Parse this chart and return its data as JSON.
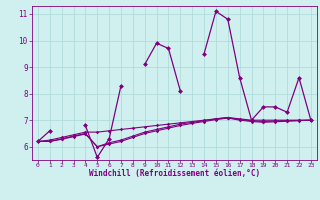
{
  "xlabel": "Windchill (Refroidissement éolien,°C)",
  "x_values": [
    0,
    1,
    2,
    3,
    4,
    5,
    6,
    7,
    8,
    9,
    10,
    11,
    12,
    13,
    14,
    15,
    16,
    17,
    18,
    19,
    20,
    21,
    22,
    23
  ],
  "line1": [
    6.2,
    6.6,
    null,
    null,
    6.8,
    5.6,
    6.3,
    8.3,
    null,
    9.1,
    9.9,
    9.7,
    8.1,
    null,
    9.5,
    11.1,
    10.8,
    8.6,
    7.0,
    7.5,
    7.5,
    7.3,
    8.6,
    7.0
  ],
  "line2": [
    6.2,
    6.25,
    6.35,
    6.45,
    6.55,
    6.55,
    6.6,
    6.65,
    6.7,
    6.75,
    6.8,
    6.85,
    6.9,
    6.95,
    7.0,
    7.05,
    7.1,
    7.05,
    7.0,
    7.0,
    7.0,
    7.0,
    7.0,
    7.0
  ],
  "line3": [
    6.2,
    6.2,
    6.3,
    6.4,
    6.5,
    6.0,
    6.15,
    6.25,
    6.4,
    6.55,
    6.65,
    6.75,
    6.85,
    6.92,
    6.98,
    7.05,
    7.1,
    7.02,
    6.98,
    6.95,
    6.97,
    6.98,
    6.99,
    7.0
  ],
  "line4": [
    6.2,
    6.2,
    6.28,
    6.38,
    6.48,
    6.0,
    6.1,
    6.2,
    6.35,
    6.5,
    6.6,
    6.7,
    6.8,
    6.88,
    6.95,
    7.02,
    7.08,
    7.0,
    6.95,
    6.92,
    6.94,
    6.96,
    6.98,
    7.0
  ],
  "line_color": "#800080",
  "bg_color": "#d0f0f0",
  "grid_color": "#aad8d8",
  "ylim": [
    5.5,
    11.3
  ],
  "xlim": [
    -0.5,
    23.5
  ],
  "yticks": [
    6,
    7,
    8,
    9,
    10,
    11
  ]
}
